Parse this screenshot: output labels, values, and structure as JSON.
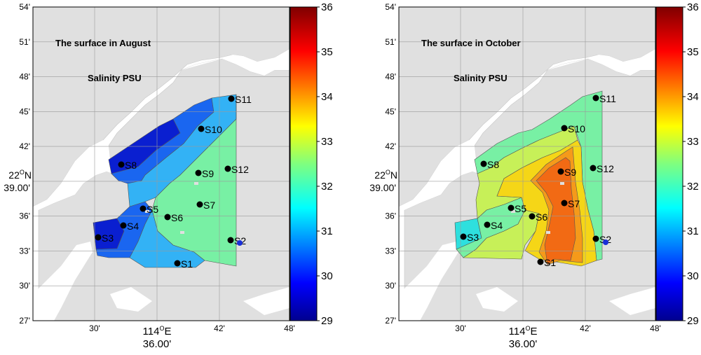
{
  "panels": [
    {
      "id": "august",
      "title": "The surface in August",
      "subtitle": "Salinity PSU",
      "stations": [
        {
          "name": "S1"
        },
        {
          "name": "S2"
        },
        {
          "name": "S3"
        },
        {
          "name": "S4"
        },
        {
          "name": "S5"
        },
        {
          "name": "S6"
        },
        {
          "name": "S7"
        },
        {
          "name": "S8"
        },
        {
          "name": "S9"
        },
        {
          "name": "S10"
        },
        {
          "name": "S11"
        },
        {
          "name": "S12"
        }
      ]
    },
    {
      "id": "october",
      "title": "The surface in October",
      "subtitle": "Salinity PSU",
      "stations": [
        {
          "name": "S1"
        },
        {
          "name": "S2"
        },
        {
          "name": "S3"
        },
        {
          "name": "S4"
        },
        {
          "name": "S5"
        },
        {
          "name": "S6"
        },
        {
          "name": "S7"
        },
        {
          "name": "S8"
        },
        {
          "name": "S9"
        },
        {
          "name": "S10"
        },
        {
          "name": "S11"
        },
        {
          "name": "S12"
        }
      ]
    }
  ],
  "axes": {
    "y_ticks": [
      "54'",
      "51'",
      "48'",
      "45'",
      "42'",
      "39.00'",
      "36'",
      "33'",
      "30'",
      "27'"
    ],
    "y_deg": "22",
    "y_deg_sup": "O",
    "y_hemi": "N",
    "x_ticks": [
      "30'",
      "36.00'",
      "42'",
      "48'"
    ],
    "x_deg": "114",
    "x_deg_sup": "O",
    "x_hemi": "E"
  },
  "colorbar": {
    "labels": [
      "36",
      "35",
      "34",
      "33",
      "32",
      "31",
      "30",
      "29"
    ],
    "min": 29,
    "max": 36
  },
  "colors": {
    "land": "#e0e0e0",
    "water": "#ffffff",
    "s_29_5": "#0a1fd0",
    "s_30_5": "#1a66f0",
    "s_31": "#33b2f5",
    "s_31_5": "#2ee0de",
    "s_32": "#78f0a4",
    "s_32_5": "#c7f058",
    "s_33": "#f5d617",
    "s_33_5": "#f59a1a",
    "s_34": "#f26a14"
  }
}
